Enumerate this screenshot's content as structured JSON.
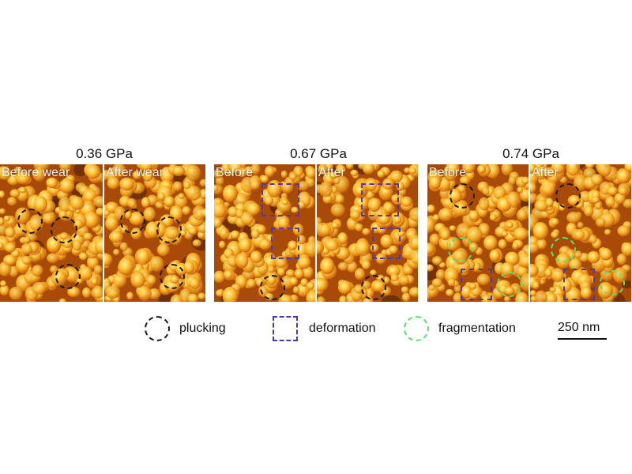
{
  "groups": [
    {
      "title": "0.36 GPa",
      "panels": [
        {
          "label": "Before wear"
        },
        {
          "label": "After wear"
        }
      ]
    },
    {
      "title": "0.67 GPa",
      "panels": [
        {
          "label": "Before"
        },
        {
          "label": "After"
        }
      ]
    },
    {
      "title": "0.74 GPa",
      "panels": [
        {
          "label": "Before"
        },
        {
          "label": "After"
        }
      ]
    }
  ],
  "legend": {
    "plucking": "plucking",
    "deformation": "deformation",
    "fragmentation": "fragmentation"
  },
  "scale_bar": "250 nm",
  "colors": {
    "plucking": "#1a1a1a",
    "deformation": "#4b3aa8",
    "fragmentation": "#5fe06a",
    "texture_dark": "#a84a08",
    "texture_light": "#ffe27a"
  }
}
